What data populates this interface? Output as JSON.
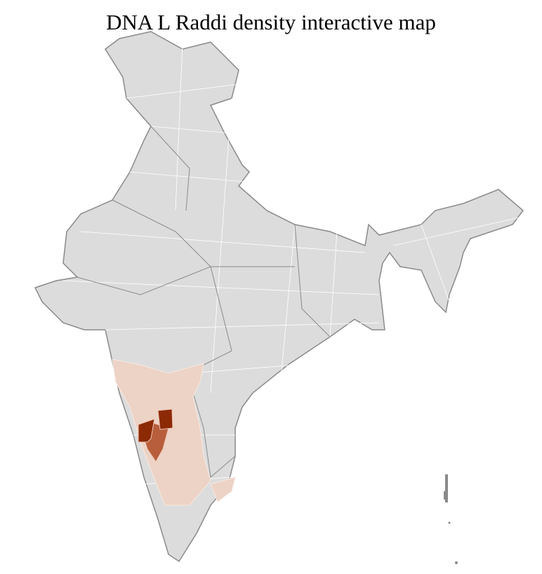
{
  "title": "DNA L Raddi density interactive map",
  "colors": {
    "base": "#dcdcdc",
    "border": "#8a8a8a",
    "district_border": "#ffffff",
    "low": "#ecd3c6",
    "medium": "#b85e3c",
    "high": "#8b2a05"
  }
}
